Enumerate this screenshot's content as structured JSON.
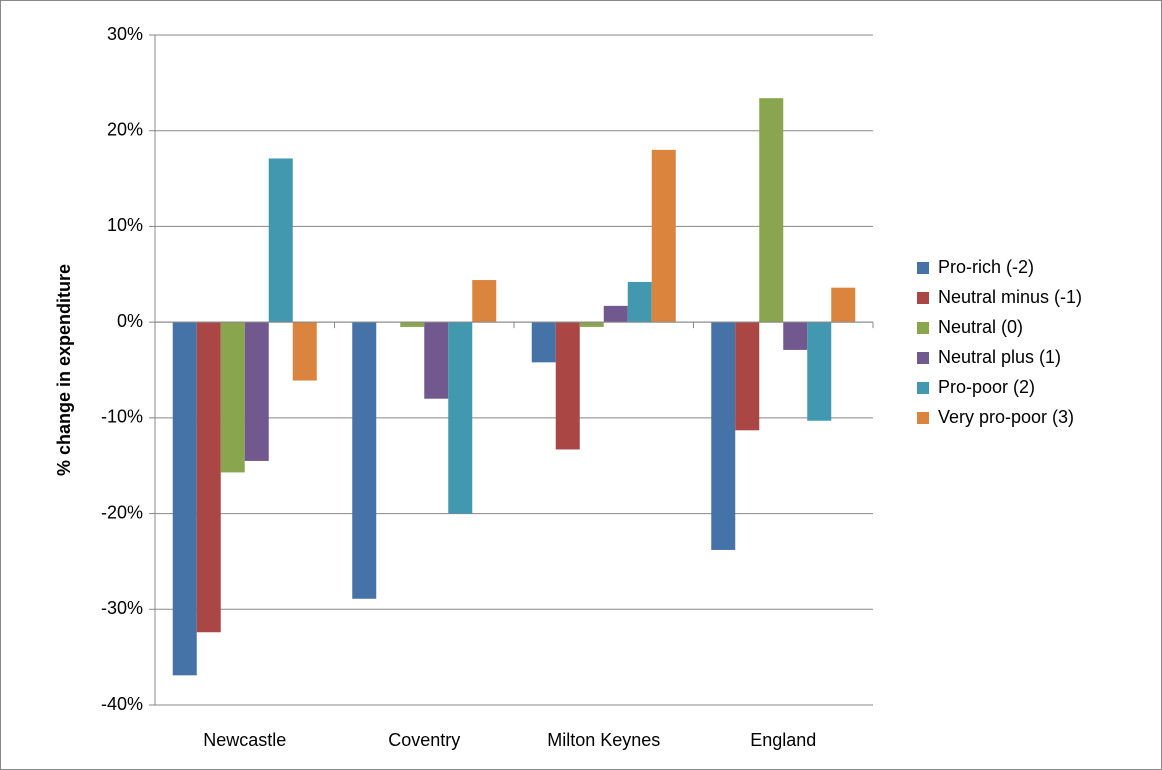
{
  "chart_data": {
    "type": "bar",
    "y_label": "% change in expenditure",
    "categories": [
      "Newcastle",
      "Coventry",
      "Milton Keynes",
      "England"
    ],
    "series": [
      {
        "name": "Pro-rich (-2)",
        "color": "#4572a7",
        "values": [
          -36.9,
          -28.9,
          -4.2,
          -23.8
        ]
      },
      {
        "name": "Neutral minus (-1)",
        "color": "#aa4643",
        "values": [
          -32.4,
          0,
          -13.3,
          -11.3
        ]
      },
      {
        "name": "Neutral (0)",
        "color": "#89a54e",
        "values": [
          -15.7,
          -0.5,
          -0.5,
          23.4
        ]
      },
      {
        "name": "Neutral plus (1)",
        "color": "#71588f",
        "values": [
          -14.5,
          -8.0,
          1.7,
          -2.9
        ]
      },
      {
        "name": "Pro-poor (2)",
        "color": "#4198af",
        "values": [
          17.1,
          -20.0,
          4.2,
          -10.3
        ]
      },
      {
        "name": "Very pro-poor (3)",
        "color": "#db843d",
        "values": [
          -6.1,
          4.4,
          18.0,
          3.6
        ]
      }
    ],
    "ylim": [
      -40,
      30
    ],
    "yticks": [
      {
        "value": -40,
        "label": "-40%"
      },
      {
        "value": -30,
        "label": "-30%"
      },
      {
        "value": -20,
        "label": "-20%"
      },
      {
        "value": -10,
        "label": "-10%"
      },
      {
        "value": 0,
        "label": "0%"
      },
      {
        "value": 10,
        "label": "10%"
      },
      {
        "value": 20,
        "label": "20%"
      },
      {
        "value": 30,
        "label": "30%"
      }
    ],
    "grid": true,
    "legend": "right"
  }
}
